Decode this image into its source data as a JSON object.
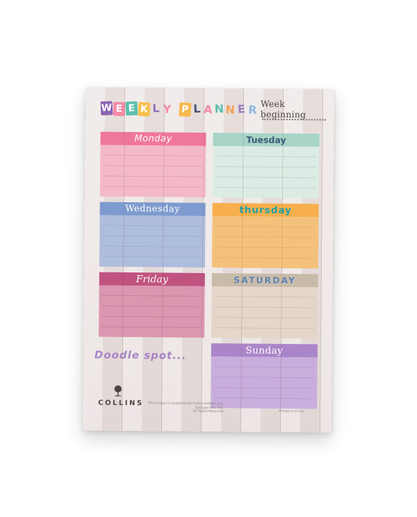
{
  "pad": {
    "title_letters": [
      {
        "char": "W",
        "block": true,
        "color": "#8a63b3"
      },
      {
        "char": "E",
        "block": true,
        "color": "#f28ba9"
      },
      {
        "char": "E",
        "block": true,
        "color": "#5ec0ae"
      },
      {
        "char": "K",
        "block": true,
        "color": "#f6c14e"
      },
      {
        "char": "L",
        "block": false,
        "color": "#9070b8"
      },
      {
        "char": "Y",
        "block": false,
        "color": "#f28ba9"
      },
      {
        "char": " ",
        "block": false,
        "color": ""
      },
      {
        "char": "P",
        "block": true,
        "color": "#f6b94e"
      },
      {
        "char": "L",
        "block": false,
        "color": "#474e6e"
      },
      {
        "char": "A",
        "block": false,
        "color": "#f28ba9"
      },
      {
        "char": "N",
        "block": false,
        "color": "#5ec0ae"
      },
      {
        "char": "N",
        "block": false,
        "color": "#f2a257"
      },
      {
        "char": "E",
        "block": false,
        "color": "#9b7fc2"
      },
      {
        "char": "R",
        "block": false,
        "color": "#8fb7e0"
      }
    ],
    "week_beginning_label": "Week beginning",
    "days": [
      {
        "name": "Monday",
        "header_bg": "#f0779c",
        "body_bg": "#f4b9c8",
        "name_color": "#ffffff",
        "line_color": "#d8879f",
        "lines": 4
      },
      {
        "name": "Tuesday",
        "header_bg": "#a8d5c8",
        "body_bg": "#dcebe4",
        "name_color": "#3b5a75",
        "line_color": "#a9c5ba",
        "lines": 4
      },
      {
        "name": "Wednesday",
        "header_bg": "#7e9bcf",
        "body_bg": "#aebddc",
        "name_color": "#ffffff",
        "line_color": "#8ba0c4",
        "lines": 4
      },
      {
        "name": "thursday",
        "header_bg": "#f6af4c",
        "body_bg": "#f4c17c",
        "name_color": "#21a0a6",
        "line_color": "#dfa457",
        "lines": 4
      },
      {
        "name": "Friday",
        "header_bg": "#c05380",
        "body_bg": "#db96b0",
        "name_color": "#ffffff",
        "line_color": "#b06a88",
        "lines": 4
      },
      {
        "name": "SATURDAY",
        "header_bg": "#c9bba9",
        "body_bg": "#e5d6ca",
        "name_color": "#5d80ac",
        "line_color": "#c3b09f",
        "lines": 4
      },
      {
        "name": "Sunday",
        "header_bg": "#ab85c9",
        "body_bg": "#c9addd",
        "name_color": "#ffffff",
        "line_color": "#aa8bc6",
        "lines": 4
      }
    ],
    "doodle_spot_label": "Doodle spot...",
    "brand": {
      "name": "COLLINS",
      "icon": "tree-icon",
      "fine_print_line1": "This product is published by Collins Debden Ltd, Glasgow G64 2QT",
      "fine_print_line2": "All Rights Reserved",
      "printed_note": "Printed in China"
    }
  }
}
